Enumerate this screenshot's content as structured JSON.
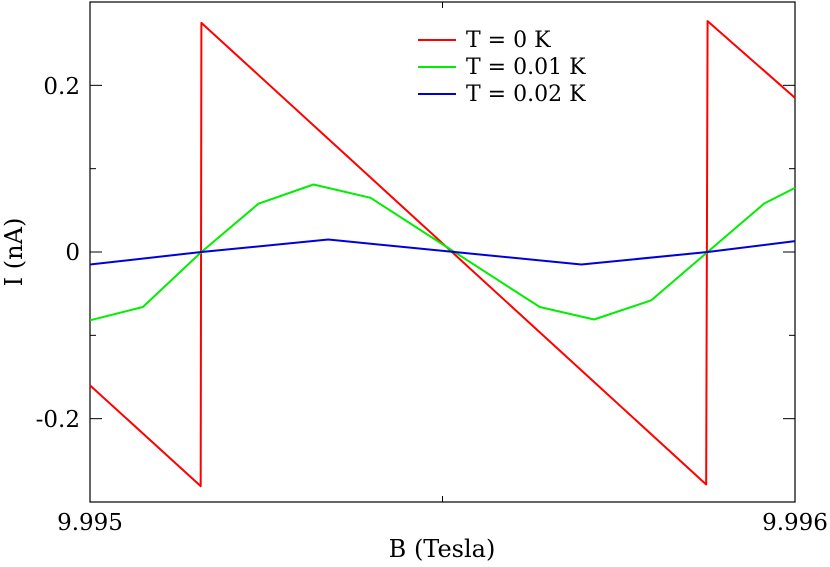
{
  "chart_data": {
    "type": "line",
    "title": "",
    "xlabel": "B (Tesla)",
    "ylabel": "I (nA)",
    "xlim": [
      9.995,
      9.996
    ],
    "ylim": [
      -0.3,
      0.3
    ],
    "x_tick_labels": [
      "9.995",
      "9.996"
    ],
    "y_tick_labels": [
      "0.2",
      "0",
      "-0.2"
    ],
    "grid": false,
    "legend": {
      "position": "top-center",
      "entries": [
        "T = 0 K",
        "T = 0.01 K",
        "T = 0.02 K"
      ]
    },
    "series": [
      {
        "name": "T = 0 K",
        "color": "#ff0000",
        "x": [
          9.995,
          9.995157,
          9.995158,
          9.995874,
          9.995876,
          9.996
        ],
        "y": [
          -0.16,
          -0.281,
          0.275,
          -0.279,
          0.277,
          0.185
        ]
      },
      {
        "name": "T = 0.01 K",
        "color": "#00ee00",
        "x": [
          9.995,
          9.995075,
          9.995158,
          9.995239,
          9.995317,
          9.995398,
          9.995517,
          9.995638,
          9.995715,
          9.995796,
          9.995876,
          9.995956,
          9.996
        ],
        "y": [
          -0.082,
          -0.066,
          0.0,
          0.058,
          0.081,
          0.065,
          0.0,
          -0.066,
          -0.081,
          -0.058,
          0.0,
          0.058,
          0.077
        ]
      },
      {
        "name": "T = 0.02 K",
        "color": "#0000dd",
        "x": [
          9.995,
          9.995158,
          9.995338,
          9.995517,
          9.995697,
          9.995876,
          9.996
        ],
        "y": [
          -0.015,
          0.0,
          0.015,
          0.0,
          -0.015,
          0.0,
          0.013
        ]
      }
    ]
  }
}
